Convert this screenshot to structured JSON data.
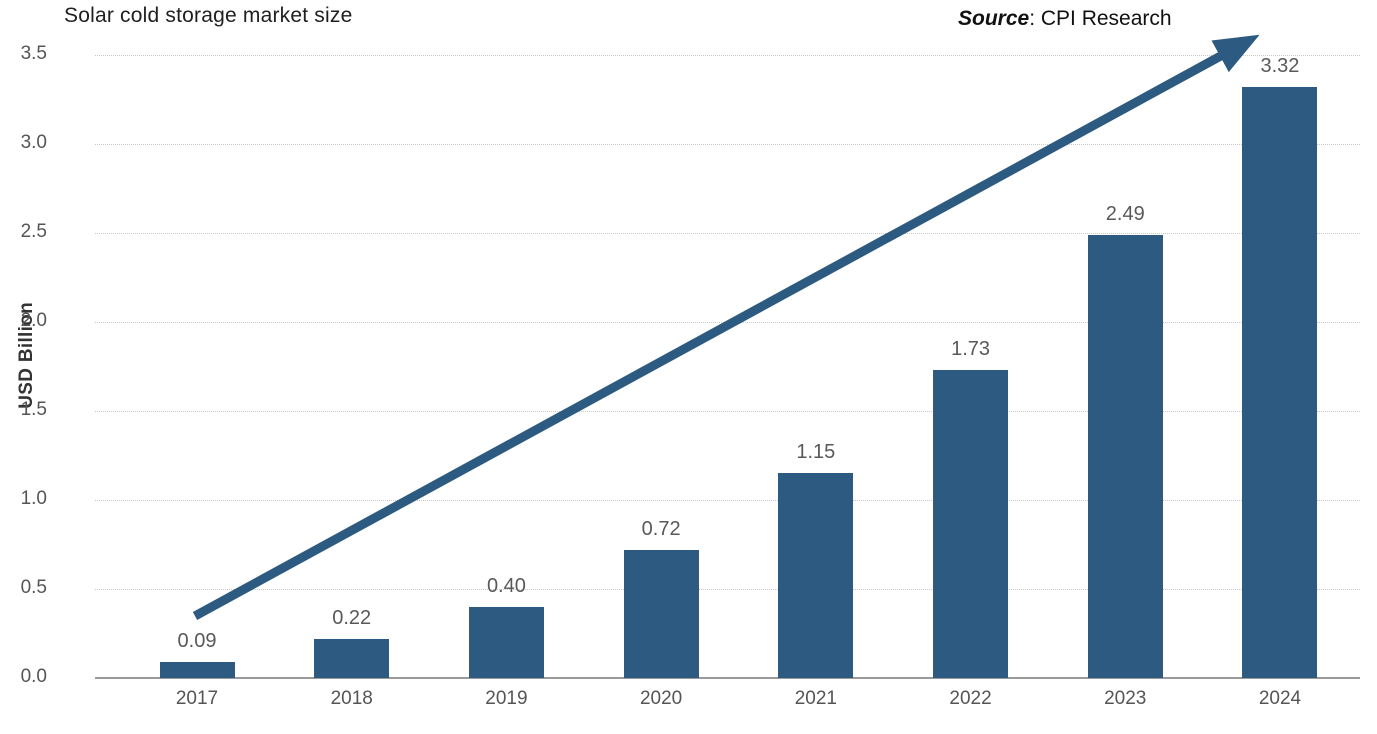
{
  "title": "Solar cold storage market size",
  "source": {
    "label": "Source",
    "text": ": CPI Research"
  },
  "chart_data": {
    "type": "bar",
    "title": "Solar cold storage market size",
    "categories": [
      "2017",
      "2018",
      "2019",
      "2020",
      "2021",
      "2022",
      "2023",
      "2024"
    ],
    "values": [
      0.09,
      0.22,
      0.4,
      0.72,
      1.15,
      1.73,
      2.49,
      3.32
    ],
    "value_labels": [
      "0.09",
      "0.22",
      "0.40",
      "0.72",
      "1.15",
      "1.73",
      "2.49",
      "3.32"
    ],
    "xlabel": "",
    "ylabel": "USD Billion",
    "ylim": [
      0,
      3.5
    ],
    "yticks": [
      0,
      0.5,
      1.0,
      1.5,
      2.0,
      2.5,
      3.0,
      3.5
    ],
    "ytick_labels": [
      "0.0",
      "0.5",
      "1.0",
      "1.5",
      "2.0",
      "2.5",
      "3.0",
      "3.5"
    ],
    "grid": "horizontal-dotted",
    "legend": "none",
    "bar_color": "#2d5a80",
    "annotation": {
      "type": "trend-arrow",
      "color": "#2d5a80"
    },
    "source": "Source: CPI Research"
  }
}
